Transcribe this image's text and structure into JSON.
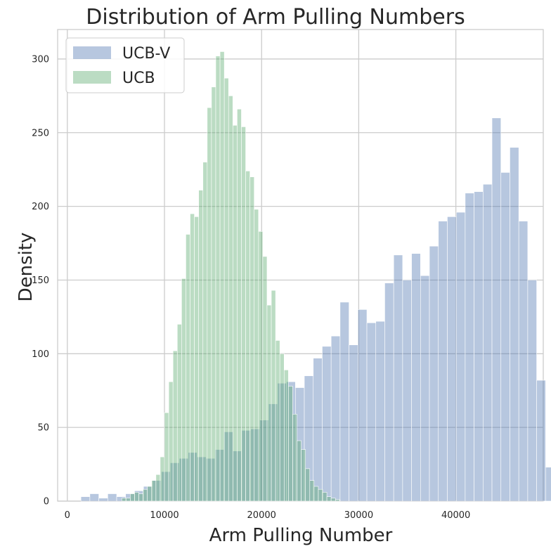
{
  "chart_data": {
    "type": "bar",
    "subtype": "histogram",
    "title": "Distribution of Arm Pulling Numbers",
    "xlabel": "Arm Pulling Number",
    "ylabel": "Density",
    "xlim": [
      -1000,
      49000
    ],
    "ylim": [
      0,
      320
    ],
    "xticks": [
      0,
      10000,
      20000,
      30000,
      40000
    ],
    "xtick_labels": [
      "0",
      "10000",
      "20000",
      "30000",
      "40000"
    ],
    "yticks": [
      0,
      50,
      100,
      150,
      200,
      250,
      300
    ],
    "ytick_labels": [
      "0",
      "50",
      "100",
      "150",
      "200",
      "250",
      "300"
    ],
    "grid": true,
    "legend_position": "top-left",
    "series": [
      {
        "name": "UCB-V",
        "color": "#4c72b0",
        "opacity": 0.4,
        "bin_start": 1400,
        "bin_width": 920,
        "values": [
          3,
          5,
          2,
          5,
          3,
          5,
          7,
          10,
          14,
          20,
          26,
          29,
          33,
          30,
          29,
          35,
          47,
          34,
          48,
          49,
          55,
          66,
          80,
          81,
          77,
          85,
          97,
          105,
          112,
          135,
          106,
          130,
          121,
          122,
          148,
          167,
          150,
          168,
          153,
          173,
          190,
          193,
          196,
          209,
          210,
          215,
          260,
          223,
          240,
          190,
          150,
          82,
          23
        ]
      },
      {
        "name": "UCB",
        "color": "#55a868",
        "opacity": 0.4,
        "bin_start": 5600,
        "bin_width": 440,
        "values": [
          2,
          2,
          5,
          6,
          5,
          8,
          10,
          14,
          18,
          30,
          60,
          81,
          102,
          120,
          151,
          181,
          195,
          193,
          211,
          230,
          267,
          281,
          302,
          305,
          287,
          275,
          255,
          266,
          254,
          224,
          220,
          198,
          183,
          166,
          133,
          143,
          109,
          100,
          89,
          78,
          59,
          41,
          35,
          22,
          14,
          10,
          8,
          6,
          3,
          2,
          1
        ]
      }
    ]
  }
}
